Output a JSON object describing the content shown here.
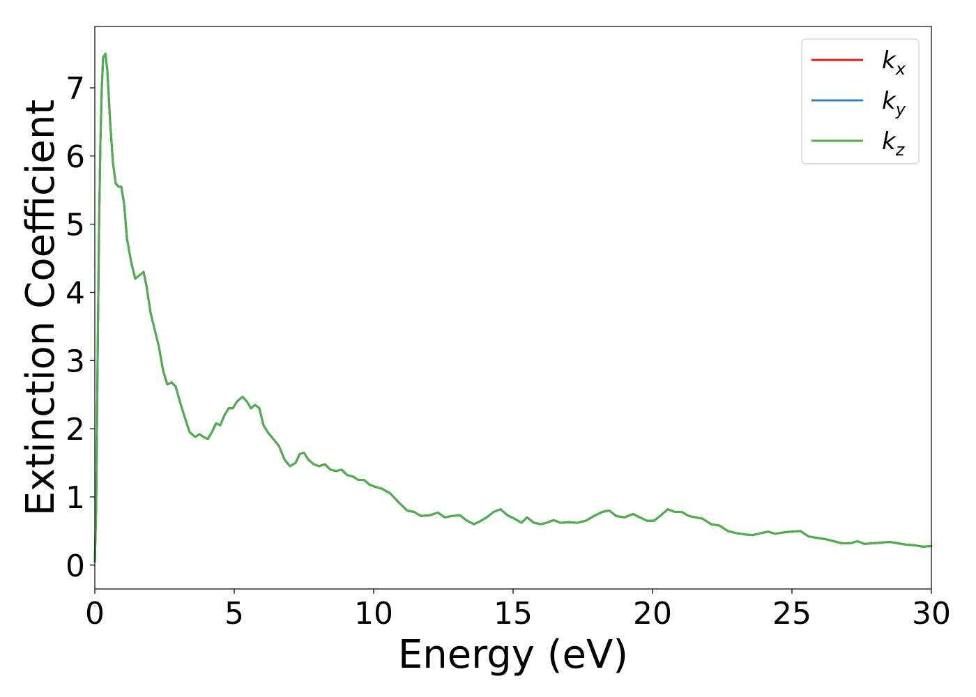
{
  "chart_data": {
    "type": "line",
    "xlabel": "Energy (eV)",
    "ylabel": "Extinction Coefficient",
    "xlim": [
      0,
      30
    ],
    "ylim": [
      -0.35,
      7.9
    ],
    "xticks": [
      "0",
      "5",
      "10",
      "15",
      "20",
      "25",
      "30"
    ],
    "yticks": [
      "0",
      "1",
      "2",
      "3",
      "4",
      "5",
      "6",
      "7"
    ],
    "grid": false,
    "legend_position": "top-right",
    "x": [
      0,
      0.05,
      0.1,
      0.15,
      0.2,
      0.25,
      0.3,
      0.38,
      0.45,
      0.55,
      0.65,
      0.75,
      0.85,
      0.95,
      1.05,
      1.15,
      1.3,
      1.45,
      1.6,
      1.75,
      1.85,
      2.0,
      2.15,
      2.3,
      2.45,
      2.6,
      2.75,
      2.9,
      3.05,
      3.2,
      3.4,
      3.6,
      3.75,
      3.9,
      4.05,
      4.2,
      4.35,
      4.5,
      4.65,
      4.8,
      4.95,
      5.1,
      5.3,
      5.45,
      5.6,
      5.75,
      5.9,
      6.05,
      6.2,
      6.4,
      6.6,
      6.8,
      7.0,
      7.2,
      7.35,
      7.5,
      7.65,
      7.85,
      8.05,
      8.25,
      8.45,
      8.65,
      8.85,
      9.05,
      9.25,
      9.45,
      9.65,
      9.85,
      10.05,
      10.3,
      10.6,
      10.9,
      11.2,
      11.45,
      11.7,
      12.0,
      12.3,
      12.55,
      12.8,
      13.1,
      13.35,
      13.6,
      13.85,
      14.05,
      14.3,
      14.55,
      14.8,
      15.05,
      15.3,
      15.5,
      15.75,
      16.0,
      16.2,
      16.45,
      16.7,
      17.0,
      17.3,
      17.6,
      17.9,
      18.2,
      18.45,
      18.7,
      19.0,
      19.3,
      19.55,
      19.8,
      20.05,
      20.3,
      20.55,
      20.8,
      21.05,
      21.3,
      21.55,
      21.8,
      22.1,
      22.4,
      22.7,
      23.0,
      23.3,
      23.6,
      23.9,
      24.15,
      24.4,
      24.7,
      25.0,
      25.3,
      25.6,
      25.9,
      26.2,
      26.5,
      26.8,
      27.1,
      27.35,
      27.6,
      27.9,
      28.2,
      28.5,
      28.8,
      29.1,
      29.4,
      29.7,
      30.0
    ],
    "series": [
      {
        "name": "k_x",
        "color": "#e41a1c",
        "values": [
          0.05,
          0.9,
          3.0,
          4.9,
          6.2,
          7.0,
          7.45,
          7.5,
          7.25,
          6.5,
          5.9,
          5.6,
          5.55,
          5.55,
          5.3,
          4.8,
          4.45,
          4.2,
          4.25,
          4.3,
          4.1,
          3.7,
          3.45,
          3.2,
          2.85,
          2.65,
          2.68,
          2.62,
          2.4,
          2.2,
          1.95,
          1.88,
          1.92,
          1.88,
          1.85,
          1.95,
          2.08,
          2.05,
          2.2,
          2.3,
          2.3,
          2.4,
          2.47,
          2.4,
          2.3,
          2.35,
          2.3,
          2.05,
          1.95,
          1.85,
          1.75,
          1.55,
          1.45,
          1.5,
          1.63,
          1.65,
          1.55,
          1.48,
          1.45,
          1.48,
          1.4,
          1.38,
          1.4,
          1.32,
          1.3,
          1.25,
          1.25,
          1.18,
          1.15,
          1.12,
          1.05,
          0.92,
          0.8,
          0.78,
          0.72,
          0.73,
          0.77,
          0.7,
          0.72,
          0.73,
          0.65,
          0.6,
          0.65,
          0.7,
          0.78,
          0.82,
          0.73,
          0.68,
          0.62,
          0.7,
          0.62,
          0.6,
          0.62,
          0.66,
          0.62,
          0.63,
          0.62,
          0.65,
          0.72,
          0.78,
          0.8,
          0.72,
          0.7,
          0.75,
          0.7,
          0.65,
          0.65,
          0.73,
          0.82,
          0.78,
          0.78,
          0.72,
          0.7,
          0.68,
          0.6,
          0.58,
          0.5,
          0.47,
          0.45,
          0.44,
          0.47,
          0.49,
          0.46,
          0.48,
          0.49,
          0.5,
          0.42,
          0.4,
          0.38,
          0.35,
          0.32,
          0.32,
          0.35,
          0.31,
          0.32,
          0.33,
          0.34,
          0.32,
          0.3,
          0.29,
          0.27,
          0.28
        ]
      },
      {
        "name": "k_y",
        "color": "#377eb8",
        "values": [
          0.05,
          0.9,
          3.0,
          4.9,
          6.2,
          7.0,
          7.45,
          7.5,
          7.25,
          6.5,
          5.9,
          5.6,
          5.55,
          5.55,
          5.3,
          4.8,
          4.45,
          4.2,
          4.25,
          4.3,
          4.1,
          3.7,
          3.45,
          3.2,
          2.85,
          2.65,
          2.68,
          2.62,
          2.4,
          2.2,
          1.95,
          1.88,
          1.92,
          1.88,
          1.85,
          1.95,
          2.08,
          2.05,
          2.2,
          2.3,
          2.3,
          2.4,
          2.47,
          2.4,
          2.3,
          2.35,
          2.3,
          2.05,
          1.95,
          1.85,
          1.75,
          1.55,
          1.45,
          1.5,
          1.63,
          1.65,
          1.55,
          1.48,
          1.45,
          1.48,
          1.4,
          1.38,
          1.4,
          1.32,
          1.3,
          1.25,
          1.25,
          1.18,
          1.15,
          1.12,
          1.05,
          0.92,
          0.8,
          0.78,
          0.72,
          0.73,
          0.77,
          0.7,
          0.72,
          0.73,
          0.65,
          0.6,
          0.65,
          0.7,
          0.78,
          0.82,
          0.73,
          0.68,
          0.62,
          0.7,
          0.62,
          0.6,
          0.62,
          0.66,
          0.62,
          0.63,
          0.62,
          0.65,
          0.72,
          0.78,
          0.8,
          0.72,
          0.7,
          0.75,
          0.7,
          0.65,
          0.65,
          0.73,
          0.82,
          0.78,
          0.78,
          0.72,
          0.7,
          0.68,
          0.6,
          0.58,
          0.5,
          0.47,
          0.45,
          0.44,
          0.47,
          0.49,
          0.46,
          0.48,
          0.49,
          0.5,
          0.42,
          0.4,
          0.38,
          0.35,
          0.32,
          0.32,
          0.35,
          0.31,
          0.32,
          0.33,
          0.34,
          0.32,
          0.3,
          0.29,
          0.27,
          0.28
        ]
      },
      {
        "name": "k_z",
        "color": "#4daf4a",
        "values": [
          0.05,
          0.9,
          3.0,
          4.9,
          6.2,
          7.0,
          7.45,
          7.5,
          7.25,
          6.5,
          5.9,
          5.6,
          5.55,
          5.55,
          5.3,
          4.8,
          4.45,
          4.2,
          4.25,
          4.3,
          4.1,
          3.7,
          3.45,
          3.2,
          2.85,
          2.65,
          2.68,
          2.62,
          2.4,
          2.2,
          1.95,
          1.88,
          1.92,
          1.88,
          1.85,
          1.95,
          2.08,
          2.05,
          2.2,
          2.3,
          2.3,
          2.4,
          2.47,
          2.4,
          2.3,
          2.35,
          2.3,
          2.05,
          1.95,
          1.85,
          1.75,
          1.55,
          1.45,
          1.5,
          1.63,
          1.65,
          1.55,
          1.48,
          1.45,
          1.48,
          1.4,
          1.38,
          1.4,
          1.32,
          1.3,
          1.25,
          1.25,
          1.18,
          1.15,
          1.12,
          1.05,
          0.92,
          0.8,
          0.78,
          0.72,
          0.73,
          0.77,
          0.7,
          0.72,
          0.73,
          0.65,
          0.6,
          0.65,
          0.7,
          0.78,
          0.82,
          0.73,
          0.68,
          0.62,
          0.7,
          0.62,
          0.6,
          0.62,
          0.66,
          0.62,
          0.63,
          0.62,
          0.65,
          0.72,
          0.78,
          0.8,
          0.72,
          0.7,
          0.75,
          0.7,
          0.65,
          0.65,
          0.73,
          0.82,
          0.78,
          0.78,
          0.72,
          0.7,
          0.68,
          0.6,
          0.58,
          0.5,
          0.47,
          0.45,
          0.44,
          0.47,
          0.49,
          0.46,
          0.48,
          0.49,
          0.5,
          0.42,
          0.4,
          0.38,
          0.35,
          0.32,
          0.32,
          0.35,
          0.31,
          0.32,
          0.33,
          0.34,
          0.32,
          0.3,
          0.29,
          0.27,
          0.28
        ]
      }
    ],
    "legend": [
      {
        "base": "k",
        "sub": "x",
        "color": "#e41a1c"
      },
      {
        "base": "k",
        "sub": "y",
        "color": "#377eb8"
      },
      {
        "base": "k",
        "sub": "z",
        "color": "#4daf4a"
      }
    ]
  }
}
